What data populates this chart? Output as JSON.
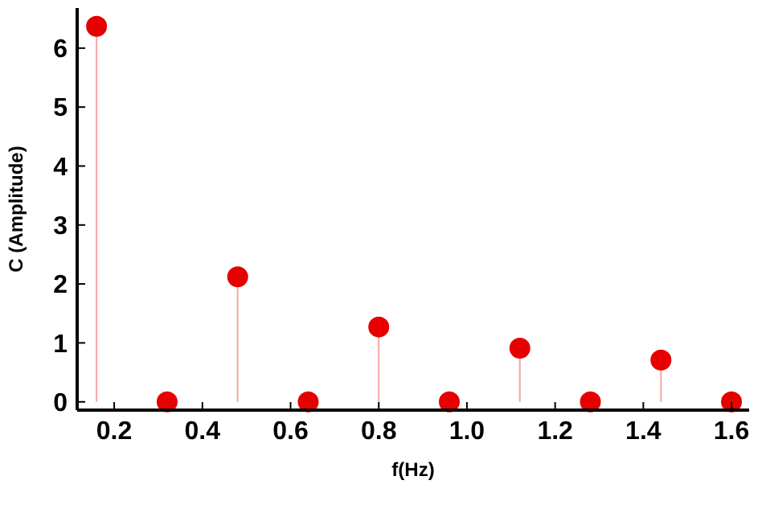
{
  "chart_data": {
    "type": "lollipop",
    "xlabel": "f(Hz)",
    "ylabel": "C (Amplitude)",
    "x": [
      0.16,
      0.32,
      0.48,
      0.64,
      0.8,
      0.96,
      1.12,
      1.28,
      1.44,
      1.6
    ],
    "series": [
      {
        "color": "#e60000",
        "values": [
          6.37,
          0,
          2.12,
          0,
          1.27,
          0,
          0.91,
          0,
          0.71,
          0
        ]
      }
    ],
    "xlim": [
      0.116,
      1.64
    ],
    "xticks": [
      0.2,
      0.4,
      0.6,
      0.8,
      {
        "value": 1,
        "label": "1.0"
      },
      1.2,
      1.4,
      1.6
    ],
    "ylim": [
      -0.14,
      6.68
    ],
    "yticks": [
      0,
      1,
      2,
      3,
      4,
      5,
      6
    ],
    "marker": "circle",
    "grid": false
  }
}
